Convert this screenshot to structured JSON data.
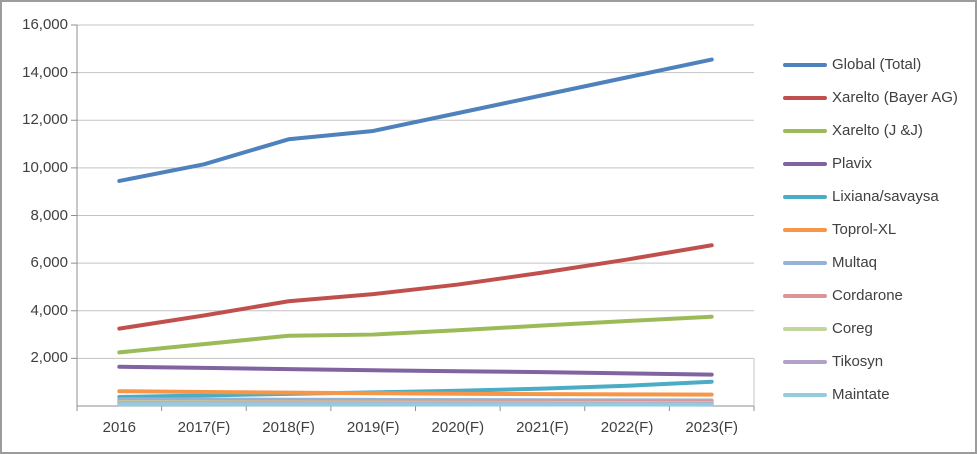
{
  "chart_data": {
    "type": "line",
    "title": "",
    "xlabel": "",
    "ylabel": "",
    "ylim": [
      0,
      16000
    ],
    "y_tick_step": 2000,
    "y_tick_labels": [
      "2,000",
      "4,000",
      "6,000",
      "8,000",
      "10,000",
      "12,000",
      "14,000",
      "16,000"
    ],
    "grid": "horizontal",
    "legend_position": "right",
    "categories": [
      "2016",
      "2017(F)",
      "2018(F)",
      "2019(F)",
      "2020(F)",
      "2021(F)",
      "2022(F)",
      "2023(F)"
    ],
    "series": [
      {
        "name": "Global (Total)",
        "color": "#4F81BD",
        "values": [
          9450,
          10150,
          11200,
          11550,
          12300,
          13050,
          13800,
          14550
        ]
      },
      {
        "name": "Xarelto (Bayer AG)",
        "color": "#C0504D",
        "values": [
          3250,
          3800,
          4400,
          4700,
          5100,
          5600,
          6150,
          6750
        ]
      },
      {
        "name": "Xarelto (J &J)",
        "color": "#9BBB59",
        "values": [
          2250,
          2600,
          2950,
          3000,
          3180,
          3380,
          3570,
          3750
        ]
      },
      {
        "name": "Plavix",
        "color": "#8064A2",
        "values": [
          1650,
          1600,
          1550,
          1500,
          1460,
          1420,
          1370,
          1320
        ]
      },
      {
        "name": "Lixiana/savaysa",
        "color": "#4BACC6",
        "values": [
          380,
          440,
          510,
          570,
          640,
          730,
          850,
          1020
        ]
      },
      {
        "name": "Toprol-XL",
        "color": "#F79646",
        "values": [
          620,
          590,
          560,
          535,
          515,
          500,
          490,
          480
        ]
      },
      {
        "name": "Multaq",
        "color": "#95B3D7",
        "values": [
          280,
          270,
          262,
          255,
          248,
          242,
          236,
          230
        ]
      },
      {
        "name": "Cordarone",
        "color": "#D99694",
        "values": [
          210,
          200,
          193,
          187,
          181,
          176,
          171,
          166
        ]
      },
      {
        "name": "Coreg",
        "color": "#C3D69B",
        "values": [
          160,
          153,
          147,
          141,
          136,
          131,
          127,
          123
        ]
      },
      {
        "name": "Tikosyn",
        "color": "#B3A2C7",
        "values": [
          115,
          110,
          106,
          102,
          99,
          96,
          93,
          90
        ]
      },
      {
        "name": "Maintate",
        "color": "#93CDDD",
        "values": [
          75,
          72,
          69,
          67,
          65,
          63,
          61,
          60
        ]
      }
    ],
    "colors": {
      "gridline": "#c3c3c3",
      "axis": "#8f8f8f",
      "text": "#404040",
      "background": "#ffffff",
      "frame_border": "#9c9c9c"
    }
  }
}
